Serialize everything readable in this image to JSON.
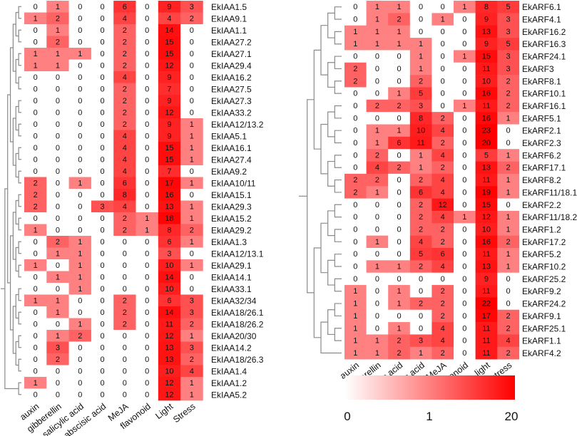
{
  "chart_data": [
    {
      "type": "heatmap",
      "title": "",
      "columns": [
        "auxin",
        "gibberellin",
        "salicylic acid",
        "abscisic acid",
        "MeJA",
        "flavonoid",
        "Light",
        "Stress"
      ],
      "rows": [
        "EkIAA1.5",
        "EkIAA9.1",
        "EkIAA1.1",
        "EkIAA27.2",
        "EkIAA27.1",
        "EkIAA29.4",
        "EkIAA16.2",
        "EkIAA27.5",
        "EkIAA27.3",
        "EkIAA33.2",
        "EkIAA12/13.2",
        "EkIAA5.1",
        "EkIAA16.1",
        "EkIAA27.4",
        "EkIAA9.2",
        "EkIAA10/11",
        "EkIAA15.1",
        "EkIAA29.3",
        "EkIAA15.2",
        "EkIAA29.2",
        "EkIAA1.3",
        "EkIAA12/13.1",
        "EkIAA29.1",
        "EkIAA14.1",
        "EkIAA33.1",
        "EkIAA32/34",
        "EkIAA18/26.1",
        "EkIAA18/26.2",
        "EkIAA20/30",
        "EkIAA14.2",
        "EkIAA18/26.3",
        "EkIAA1.4",
        "EkIAA1.2",
        "EkIAA5.2"
      ],
      "values": [
        [
          0,
          1,
          0,
          0,
          6,
          0,
          9,
          3
        ],
        [
          1,
          2,
          0,
          0,
          4,
          0,
          4,
          2
        ],
        [
          0,
          1,
          0,
          0,
          2,
          0,
          14,
          0
        ],
        [
          0,
          2,
          0,
          0,
          2,
          0,
          15,
          0
        ],
        [
          1,
          1,
          1,
          0,
          2,
          0,
          15,
          0
        ],
        [
          1,
          1,
          0,
          0,
          2,
          0,
          12,
          0
        ],
        [
          0,
          0,
          0,
          0,
          4,
          0,
          9,
          0
        ],
        [
          0,
          0,
          0,
          0,
          2,
          0,
          7,
          0
        ],
        [
          0,
          0,
          0,
          0,
          2,
          0,
          9,
          0
        ],
        [
          0,
          0,
          0,
          0,
          2,
          0,
          12,
          0
        ],
        [
          0,
          0,
          0,
          0,
          2,
          0,
          9,
          1
        ],
        [
          0,
          0,
          0,
          0,
          4,
          0,
          9,
          1
        ],
        [
          0,
          0,
          0,
          0,
          4,
          0,
          15,
          1
        ],
        [
          0,
          0,
          0,
          0,
          4,
          0,
          15,
          1
        ],
        [
          0,
          0,
          0,
          0,
          4,
          0,
          7,
          0
        ],
        [
          2,
          0,
          1,
          0,
          6,
          0,
          17,
          1
        ],
        [
          2,
          0,
          0,
          0,
          8,
          0,
          16,
          0
        ],
        [
          2,
          0,
          0,
          3,
          4,
          0,
          13,
          1
        ],
        [
          0,
          0,
          0,
          0,
          2,
          1,
          18,
          1
        ],
        [
          1,
          0,
          0,
          0,
          2,
          1,
          8,
          2
        ],
        [
          0,
          2,
          1,
          0,
          0,
          0,
          6,
          1
        ],
        [
          0,
          1,
          1,
          0,
          0,
          0,
          3,
          0
        ],
        [
          1,
          0,
          1,
          0,
          0,
          0,
          10,
          1
        ],
        [
          0,
          1,
          1,
          0,
          0,
          0,
          14,
          0
        ],
        [
          0,
          0,
          1,
          0,
          0,
          0,
          10,
          0
        ],
        [
          1,
          1,
          0,
          0,
          2,
          0,
          6,
          3
        ],
        [
          0,
          1,
          0,
          0,
          2,
          0,
          14,
          3
        ],
        [
          0,
          0,
          1,
          0,
          2,
          0,
          11,
          2
        ],
        [
          0,
          1,
          2,
          0,
          0,
          0,
          12,
          1
        ],
        [
          0,
          3,
          0,
          0,
          0,
          0,
          13,
          3
        ],
        [
          0,
          2,
          0,
          0,
          0,
          0,
          13,
          2
        ],
        [
          0,
          0,
          0,
          0,
          0,
          0,
          10,
          4
        ],
        [
          1,
          0,
          0,
          0,
          0,
          0,
          12,
          1
        ],
        [
          0,
          0,
          0,
          0,
          0,
          0,
          12,
          1
        ]
      ]
    },
    {
      "type": "heatmap",
      "title": "",
      "columns": [
        "auxin",
        "gibberellin",
        "salicylic acid",
        "abscisic acid",
        "MeJA",
        "flavonoid",
        "light",
        "stress"
      ],
      "rows": [
        "EkARF6.1",
        "EkARF4.1",
        "EkARF16.2",
        "EkARF16.3",
        "EkARF24.1",
        "EkARF3",
        "EkARF8.1",
        "EkARF10.1",
        "EkARF16.1",
        "EkARF5.1",
        "EkARF2.1",
        "EkARF2.3",
        "EkARF6.2",
        "EkARF17.1",
        "EkARF8.2",
        "EkARF11/18.1",
        "EkARF2.2",
        "EkARF11/18.2",
        "EkARF1.2",
        "EkARF17.2",
        "EkARF5.2",
        "EkARF10.2",
        "EkARF25.2",
        "EkARF9.2",
        "EkARF24.2",
        "EkARF9.1",
        "EkARF25.1",
        "EkARF1.1",
        "EkARF4.2"
      ],
      "values": [
        [
          0,
          1,
          1,
          0,
          0,
          1,
          8,
          5
        ],
        [
          0,
          1,
          2,
          0,
          1,
          0,
          9,
          3
        ],
        [
          1,
          1,
          1,
          0,
          0,
          0,
          13,
          3
        ],
        [
          1,
          1,
          1,
          1,
          0,
          0,
          9,
          5
        ],
        [
          0,
          0,
          0,
          1,
          0,
          1,
          15,
          3
        ],
        [
          2,
          0,
          0,
          1,
          0,
          0,
          11,
          3
        ],
        [
          2,
          0,
          0,
          2,
          0,
          0,
          10,
          2
        ],
        [
          0,
          0,
          1,
          5,
          0,
          0,
          16,
          2
        ],
        [
          0,
          2,
          2,
          3,
          0,
          1,
          11,
          2
        ],
        [
          0,
          0,
          0,
          8,
          2,
          0,
          16,
          1
        ],
        [
          0,
          1,
          1,
          10,
          4,
          0,
          23,
          0
        ],
        [
          0,
          1,
          6,
          11,
          2,
          0,
          20,
          0
        ],
        [
          0,
          2,
          0,
          1,
          4,
          0,
          5,
          1
        ],
        [
          0,
          4,
          2,
          1,
          2,
          0,
          13,
          2
        ],
        [
          2,
          2,
          0,
          2,
          4,
          0,
          11,
          1
        ],
        [
          2,
          1,
          0,
          6,
          4,
          0,
          19,
          1
        ],
        [
          0,
          0,
          0,
          2,
          12,
          0,
          15,
          0
        ],
        [
          0,
          0,
          0,
          2,
          4,
          1,
          12,
          1
        ],
        [
          0,
          0,
          0,
          2,
          2,
          0,
          10,
          1
        ],
        [
          0,
          1,
          0,
          4,
          2,
          0,
          16,
          2
        ],
        [
          0,
          0,
          0,
          5,
          6,
          0,
          11,
          1
        ],
        [
          0,
          1,
          1,
          2,
          4,
          0,
          13,
          1
        ],
        [
          0,
          0,
          0,
          0,
          0,
          0,
          9,
          0
        ],
        [
          1,
          0,
          1,
          0,
          2,
          0,
          11,
          0
        ],
        [
          1,
          0,
          1,
          2,
          2,
          0,
          22,
          0
        ],
        [
          1,
          0,
          0,
          0,
          2,
          0,
          17,
          2
        ],
        [
          1,
          0,
          1,
          0,
          4,
          0,
          11,
          2
        ],
        [
          1,
          1,
          2,
          3,
          4,
          0,
          11,
          4
        ],
        [
          1,
          1,
          2,
          1,
          2,
          0,
          11,
          2
        ]
      ]
    }
  ],
  "legend": {
    "tick_labels": [
      "0",
      "1",
      "20"
    ],
    "min_color": "#ffffff",
    "max_color": "#ff0000"
  }
}
